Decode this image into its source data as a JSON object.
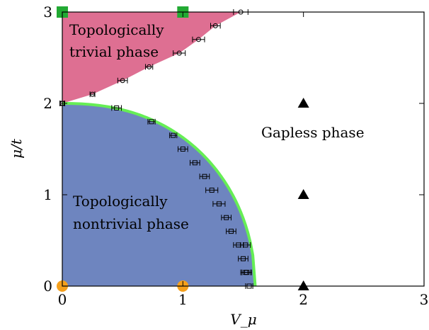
{
  "chart_data": {
    "type": "scatter",
    "xlabel": "V_μ",
    "ylabel": "μ/t",
    "xlim": [
      0,
      3
    ],
    "ylim": [
      0,
      3
    ],
    "x_ticks": [
      "0",
      "1",
      "2",
      "3"
    ],
    "y_ticks": [
      "0",
      "1",
      "2",
      "3"
    ],
    "grid": false,
    "legend": "none",
    "regions": [
      {
        "label_lines": [
          "Topologically",
          "trivial phase"
        ],
        "color": "#de6f92"
      },
      {
        "label_lines": [
          "Topologically",
          "nontrivial phase"
        ],
        "color": "#6e85bf"
      },
      {
        "label_lines": [
          "Gapless phase"
        ],
        "color": "#ffffff"
      }
    ],
    "trivial_boundary": {
      "marker": "circle",
      "x": [
        0.0,
        0.25,
        0.5,
        0.72,
        0.97,
        1.13,
        1.27,
        1.48
      ],
      "y": [
        2.0,
        2.1,
        2.25,
        2.4,
        2.55,
        2.7,
        2.85,
        3.0
      ],
      "xerr": [
        0.02,
        0.02,
        0.04,
        0.03,
        0.05,
        0.05,
        0.04,
        0.06
      ]
    },
    "nontrivial_boundary": {
      "marker": "square",
      "x": [
        0.0,
        0.45,
        0.74,
        0.92,
        1.0,
        1.1,
        1.18,
        1.24,
        1.3,
        1.36,
        1.4,
        1.46,
        1.5,
        1.52,
        1.55,
        1.52,
        1.53
      ],
      "y": [
        2.0,
        1.95,
        1.8,
        1.65,
        1.5,
        1.35,
        1.2,
        1.05,
        0.9,
        0.75,
        0.6,
        0.45,
        0.3,
        0.15,
        0.0,
        0.45,
        0.15
      ],
      "xerr": [
        0.02,
        0.04,
        0.03,
        0.03,
        0.04,
        0.04,
        0.04,
        0.05,
        0.05,
        0.04,
        0.04,
        0.04,
        0.04,
        0.04,
        0.03,
        0.04,
        0.04
      ]
    },
    "analytic_curve": {
      "color": "#66ee55",
      "x_end": 1.6,
      "y_max": 2.0
    },
    "special_points": [
      {
        "marker": "square",
        "color": "#22aa33",
        "x": [
          0,
          1
        ],
        "y": [
          3,
          3
        ]
      },
      {
        "marker": "circle",
        "color": "#f5a01c",
        "x": [
          0,
          1
        ],
        "y": [
          0,
          0
        ]
      },
      {
        "marker": "triangle",
        "color": "#000000",
        "x": [
          2,
          2,
          2
        ],
        "y": [
          2,
          1,
          0
        ]
      }
    ]
  }
}
